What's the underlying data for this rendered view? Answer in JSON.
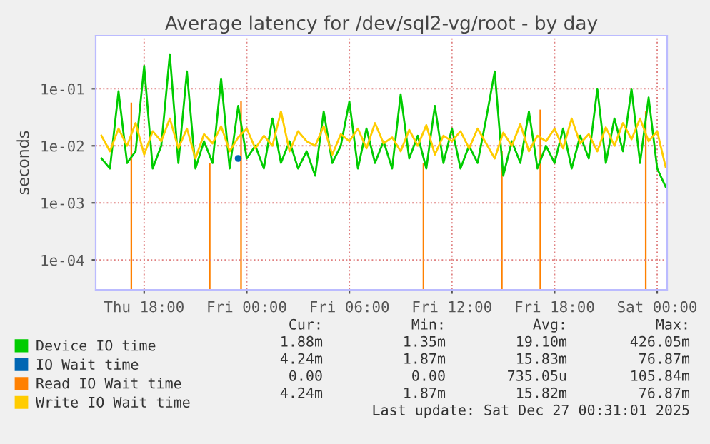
{
  "chart_data": {
    "type": "line",
    "title": "Average latency for /dev/sql2-vg/root - by day",
    "ylabel": "seconds",
    "log": "y",
    "grid": true,
    "legend": "bottom",
    "line_style": "solid",
    "xlim": [
      "2025-12-25T15:10",
      "2025-12-27T00:35"
    ],
    "xticks": [
      {
        "value": "2025-12-25T18:00",
        "label": "Thu 18:00"
      },
      {
        "value": "2025-12-26T00:00",
        "label": "Fri 00:00"
      },
      {
        "value": "2025-12-26T06:00",
        "label": "Fri 06:00"
      },
      {
        "value": "2025-12-26T12:00",
        "label": "Fri 12:00"
      },
      {
        "value": "2025-12-26T18:00",
        "label": "Fri 18:00"
      },
      {
        "value": "2025-12-27T00:00",
        "label": "Sat 00:00"
      }
    ],
    "ylim": [
      3e-05,
      0.85
    ],
    "yticks": [
      {
        "value": 0.0001,
        "label": "1e-04"
      },
      {
        "value": 0.001,
        "label": "1e-03"
      },
      {
        "value": 0.01,
        "label": "1e-02"
      },
      {
        "value": 0.1,
        "label": "1e-01"
      }
    ],
    "x": [
      "2025-12-25T15:30",
      "2025-12-25T16:00",
      "2025-12-25T16:30",
      "2025-12-25T17:00",
      "2025-12-25T17:30",
      "2025-12-25T18:00",
      "2025-12-25T18:30",
      "2025-12-25T19:00",
      "2025-12-25T19:30",
      "2025-12-25T20:00",
      "2025-12-25T20:30",
      "2025-12-25T21:00",
      "2025-12-25T21:30",
      "2025-12-25T22:00",
      "2025-12-25T22:30",
      "2025-12-25T23:00",
      "2025-12-25T23:30",
      "2025-12-26T00:00",
      "2025-12-26T00:30",
      "2025-12-26T01:00",
      "2025-12-26T01:30",
      "2025-12-26T02:00",
      "2025-12-26T02:30",
      "2025-12-26T03:00",
      "2025-12-26T03:30",
      "2025-12-26T04:00",
      "2025-12-26T04:30",
      "2025-12-26T05:00",
      "2025-12-26T05:30",
      "2025-12-26T06:00",
      "2025-12-26T06:30",
      "2025-12-26T07:00",
      "2025-12-26T07:30",
      "2025-12-26T08:00",
      "2025-12-26T08:30",
      "2025-12-26T09:00",
      "2025-12-26T09:30",
      "2025-12-26T10:00",
      "2025-12-26T10:30",
      "2025-12-26T11:00",
      "2025-12-26T11:30",
      "2025-12-26T12:00",
      "2025-12-26T12:30",
      "2025-12-26T13:00",
      "2025-12-26T13:30",
      "2025-12-26T14:00",
      "2025-12-26T14:30",
      "2025-12-26T15:00",
      "2025-12-26T15:30",
      "2025-12-26T16:00",
      "2025-12-26T16:30",
      "2025-12-26T17:00",
      "2025-12-26T17:30",
      "2025-12-26T18:00",
      "2025-12-26T18:30",
      "2025-12-26T19:00",
      "2025-12-26T19:30",
      "2025-12-26T20:00",
      "2025-12-26T20:30",
      "2025-12-26T21:00",
      "2025-12-26T21:30",
      "2025-12-26T22:00",
      "2025-12-26T22:30",
      "2025-12-26T23:00",
      "2025-12-26T23:30",
      "2025-12-27T00:00",
      "2025-12-27T00:30"
    ],
    "series": [
      {
        "name": "Device IO time",
        "color": "#00cc00",
        "values": [
          0.006,
          0.004,
          0.09,
          0.005,
          0.008,
          0.25,
          0.004,
          0.01,
          0.4,
          0.005,
          0.2,
          0.004,
          0.012,
          0.005,
          0.15,
          0.004,
          0.05,
          0.006,
          0.01,
          0.004,
          0.03,
          0.005,
          0.012,
          0.004,
          0.008,
          0.003,
          0.04,
          0.005,
          0.01,
          0.06,
          0.004,
          0.02,
          0.005,
          0.012,
          0.004,
          0.08,
          0.006,
          0.015,
          0.004,
          0.05,
          0.005,
          0.02,
          0.004,
          0.01,
          0.005,
          0.03,
          0.2,
          0.003,
          0.012,
          0.005,
          0.04,
          0.004,
          0.01,
          0.005,
          0.02,
          0.004,
          0.015,
          0.006,
          0.1,
          0.005,
          0.03,
          0.008,
          0.1,
          0.005,
          0.07,
          0.004,
          0.0019
        ]
      },
      {
        "name": "IO Wait time",
        "color": "#0066b3",
        "marker": "circle",
        "values": [
          null,
          null,
          null,
          null,
          null,
          null,
          null,
          null,
          null,
          null,
          null,
          null,
          null,
          null,
          null,
          null,
          0.006,
          null,
          null,
          null,
          null,
          null,
          null,
          null,
          null,
          null,
          null,
          null,
          null,
          null,
          null,
          null,
          null,
          null,
          null,
          null,
          null,
          null,
          null,
          null,
          null,
          null,
          null,
          null,
          null,
          null,
          null,
          null,
          null,
          null,
          null,
          null,
          null,
          null,
          null,
          null,
          null,
          null,
          null,
          null,
          null,
          null,
          null,
          null,
          null,
          null,
          null
        ]
      },
      {
        "name": "Read IO Wait time",
        "color": "#ff8000",
        "type": "bar",
        "x": [
          "2025-12-25T17:15",
          "2025-12-25T21:50",
          "2025-12-25T23:40",
          "2025-12-26T10:20",
          "2025-12-26T14:55",
          "2025-12-26T17:10",
          "2025-12-26T23:20"
        ],
        "values": [
          0.057,
          0.005,
          0.06,
          0.005,
          0.008,
          0.043,
          0.04
        ]
      },
      {
        "name": "Write IO Wait time",
        "color": "#ffcc00",
        "values": [
          0.015,
          0.008,
          0.02,
          0.01,
          0.025,
          0.007,
          0.018,
          0.012,
          0.03,
          0.009,
          0.02,
          0.006,
          0.016,
          0.011,
          0.022,
          0.008,
          0.014,
          0.02,
          0.009,
          0.015,
          0.01,
          0.04,
          0.008,
          0.018,
          0.012,
          0.01,
          0.022,
          0.007,
          0.016,
          0.012,
          0.02,
          0.009,
          0.025,
          0.011,
          0.014,
          0.008,
          0.019,
          0.01,
          0.023,
          0.007,
          0.015,
          0.012,
          0.018,
          0.009,
          0.02,
          0.011,
          0.006,
          0.017,
          0.01,
          0.024,
          0.008,
          0.015,
          0.012,
          0.02,
          0.009,
          0.03,
          0.011,
          0.016,
          0.008,
          0.021,
          0.01,
          0.025,
          0.013,
          0.03,
          0.012,
          0.018,
          0.0042
        ]
      }
    ],
    "annotations": [
      "Cur:",
      "Min:",
      "Avg:",
      "Max:",
      "1.88m",
      "1.35m",
      "19.10m",
      "426.05m",
      "4.24m",
      "1.87m",
      "15.83m",
      "76.87m",
      "0.00",
      "0.00",
      "735.05u",
      "105.84m",
      "4.24m",
      "1.87m",
      "15.82m",
      "76.87m",
      "Last update: Sat Dec 27 00:31:01 2025"
    ]
  }
}
